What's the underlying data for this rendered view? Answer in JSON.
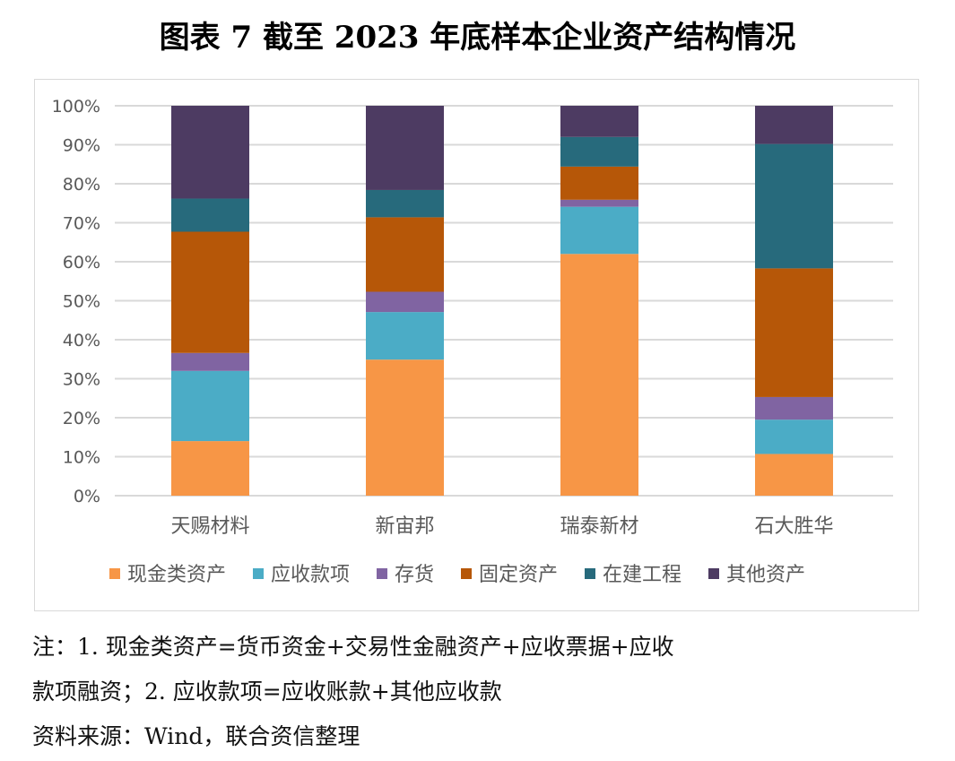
{
  "title": "图表 7  截至 2023 年底样本企业资产结构情况",
  "chart_data": {
    "type": "bar",
    "stacked": true,
    "percent": true,
    "categories": [
      "天赐材料",
      "新宙邦",
      "瑞泰新材",
      "石大胜华"
    ],
    "series": [
      {
        "name": "现金类资产",
        "color": "#F79646",
        "values": [
          14.0,
          34.9,
          62.0,
          10.7
        ]
      },
      {
        "name": "应收款项",
        "color": "#4BACC6",
        "values": [
          18.0,
          12.2,
          12.1,
          8.8
        ]
      },
      {
        "name": "存货",
        "color": "#8064A2",
        "values": [
          4.6,
          5.2,
          1.8,
          5.8
        ]
      },
      {
        "name": "固定资产",
        "color": "#B65708",
        "values": [
          31.1,
          19.1,
          8.5,
          33.0
        ]
      },
      {
        "name": "在建工程",
        "color": "#276A7C",
        "values": [
          8.5,
          7.0,
          7.6,
          31.9
        ]
      },
      {
        "name": "其他资产",
        "color": "#4D3B62",
        "values": [
          23.8,
          21.6,
          8.0,
          9.8
        ]
      }
    ],
    "yticks": [
      "0%",
      "10%",
      "20%",
      "30%",
      "40%",
      "50%",
      "60%",
      "70%",
      "80%",
      "90%",
      "100%"
    ],
    "ylim": [
      0,
      100
    ],
    "grid": true,
    "legend": "bottom"
  },
  "notes": [
    "注：1. 现金类资产=货币资金+交易性金融资产+应收票据+应收",
    "款项融资；2. 应收款项=应收账款+其他应收款",
    "资料来源：Wind，联合资信整理"
  ]
}
